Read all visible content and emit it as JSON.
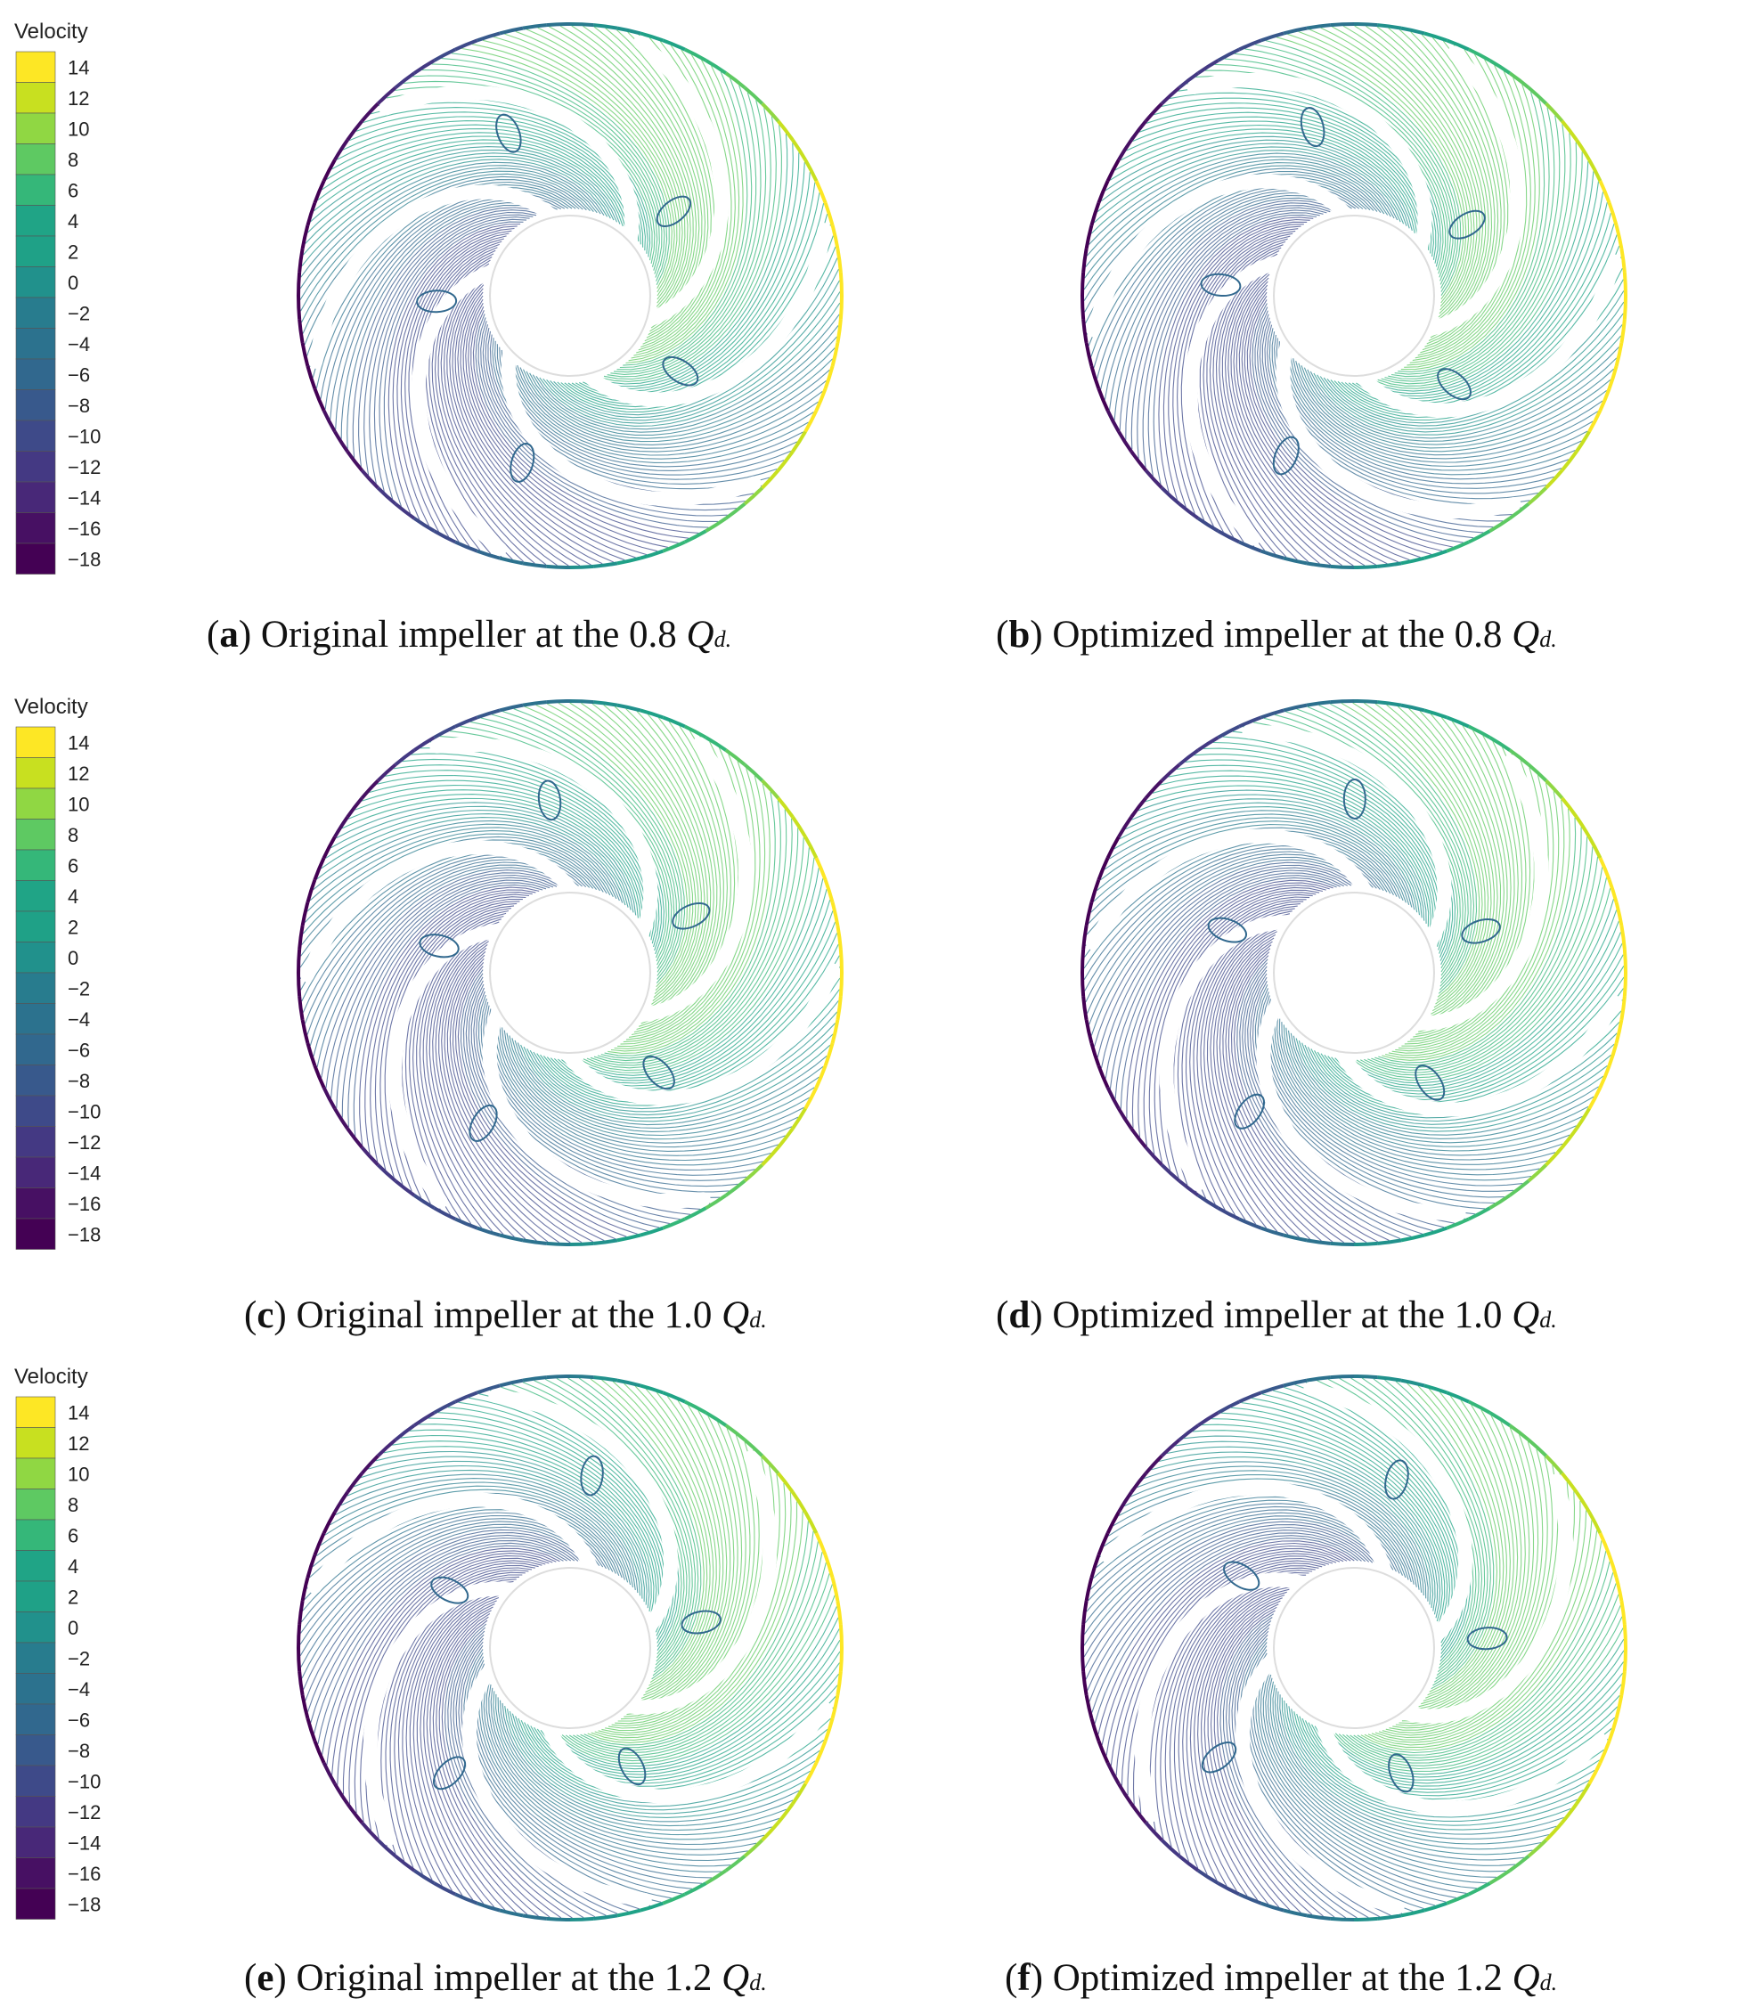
{
  "colorbar": {
    "title": "Velocity",
    "ticks": [
      "14",
      "12",
      "10",
      "8",
      "6",
      "4",
      "2",
      "0",
      "−2",
      "−4",
      "−6",
      "−8",
      "−10",
      "−12",
      "−14",
      "−16",
      "−18"
    ],
    "colors": [
      "#fde725",
      "#c8e020",
      "#90d743",
      "#5ec962",
      "#35b779",
      "#20a486",
      "#1fa187",
      "#21918c",
      "#287c8e",
      "#2c728e",
      "#31688e",
      "#38598c",
      "#3e4a89",
      "#443983",
      "#482878",
      "#471063",
      "#440154"
    ]
  },
  "panels": [
    {
      "label": "a",
      "text": "Original impeller at the 0.8 ",
      "q": "Q",
      "sub": "d.",
      "colors": {
        "blade": "#ffffff",
        "flow_low": "#3b528b",
        "flow_high": "#c8e020"
      }
    },
    {
      "label": "b",
      "text": "Optimized impeller at the 0.8 ",
      "q": "Q",
      "sub": "d."
    },
    {
      "label": "c",
      "text": "Original impeller at the 1.0 ",
      "q": "Q",
      "sub": "d."
    },
    {
      "label": "d",
      "text": "Optimized impeller at the 1.0 ",
      "q": "Q",
      "sub": "d."
    },
    {
      "label": "e",
      "text": "Original impeller at the 1.2 ",
      "q": "Q",
      "sub": "d."
    },
    {
      "label": "f",
      "text": "Optimized impeller at the 1.2 ",
      "q": "Q",
      "sub": "d."
    }
  ]
}
